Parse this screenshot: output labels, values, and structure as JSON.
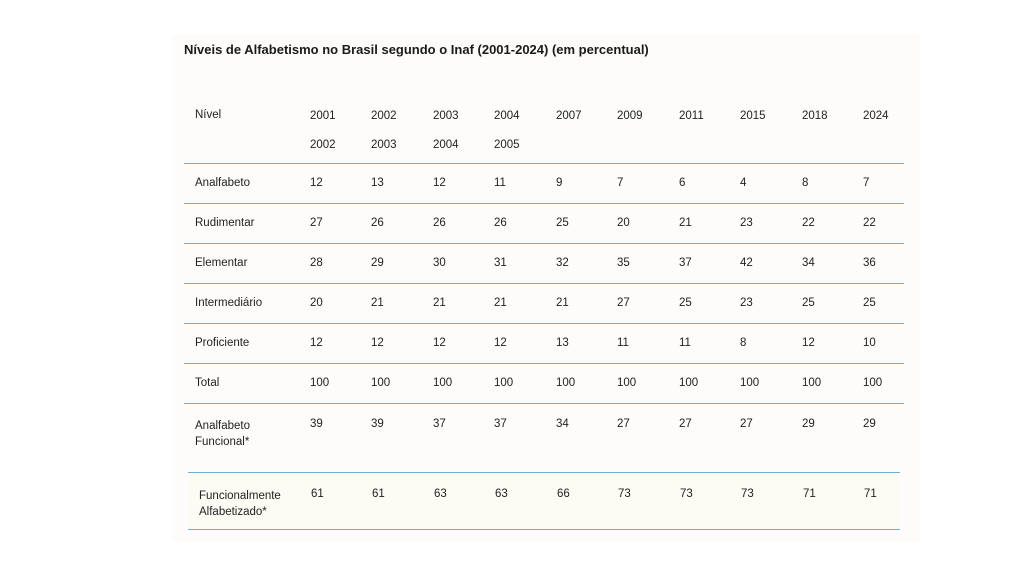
{
  "title": "Níveis de Alfabetismo no Brasil segundo o Inaf (2001-2024) (em percentual)",
  "header": {
    "label": "Nível",
    "columns": [
      {
        "line1": "2001",
        "line2": "2002"
      },
      {
        "line1": "2002",
        "line2": "2003"
      },
      {
        "line1": "2003",
        "line2": "2004"
      },
      {
        "line1": "2004",
        "line2": "2005"
      },
      {
        "line1": "2007",
        "line2": ""
      },
      {
        "line1": "2009",
        "line2": ""
      },
      {
        "line1": "2011",
        "line2": ""
      },
      {
        "line1": "2015",
        "line2": ""
      },
      {
        "line1": "2018",
        "line2": ""
      },
      {
        "line1": "2024",
        "line2": ""
      }
    ]
  },
  "rows": [
    {
      "label": "Analfabeto",
      "values": [
        "12",
        "13",
        "12",
        "11",
        "9",
        "7",
        "6",
        "4",
        "8",
        "7"
      ]
    },
    {
      "label": "Rudimentar",
      "values": [
        "27",
        "26",
        "26",
        "26",
        "25",
        "20",
        "21",
        "23",
        "22",
        "22"
      ]
    },
    {
      "label": "Elementar",
      "values": [
        "28",
        "29",
        "30",
        "31",
        "32",
        "35",
        "37",
        "42",
        "34",
        "36"
      ]
    },
    {
      "label": "Intermediário",
      "values": [
        "20",
        "21",
        "21",
        "21",
        "21",
        "27",
        "25",
        "23",
        "25",
        "25"
      ]
    },
    {
      "label": "Proficiente",
      "values": [
        "12",
        "12",
        "12",
        "12",
        "13",
        "11",
        "11",
        "8",
        "12",
        "10"
      ]
    },
    {
      "label": "Total",
      "values": [
        "100",
        "100",
        "100",
        "100",
        "100",
        "100",
        "100",
        "100",
        "100",
        "100"
      ]
    }
  ],
  "functional_illiterate": {
    "label_line1": "Analfabeto",
    "label_line2": "Funcional*",
    "values": [
      "39",
      "39",
      "37",
      "37",
      "34",
      "27",
      "27",
      "27",
      "29",
      "29"
    ]
  },
  "functional_literate": {
    "label_line1": "Funcionalmente",
    "label_line2": "Alfabetizado*",
    "values": [
      "61",
      "61",
      "63",
      "63",
      "66",
      "73",
      "73",
      "73",
      "71",
      "71"
    ]
  }
}
